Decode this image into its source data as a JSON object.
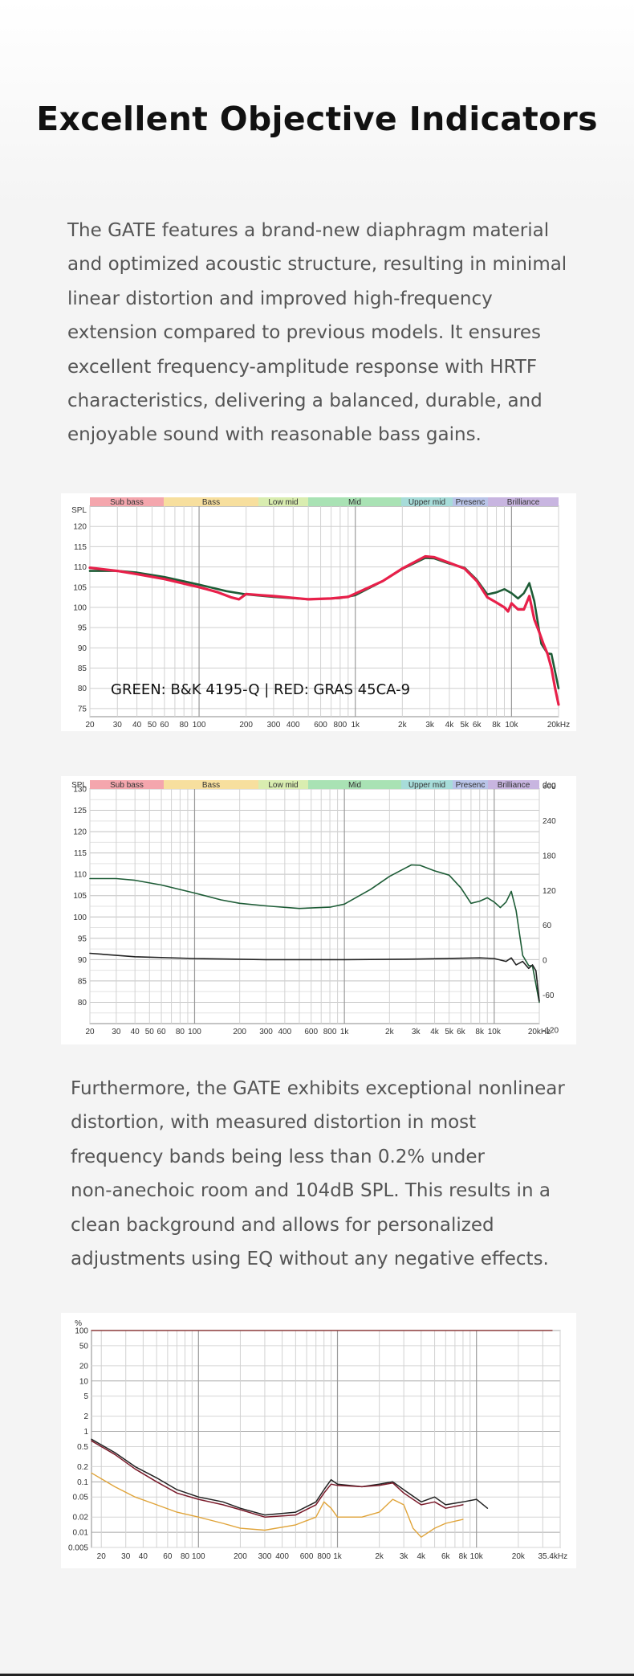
{
  "title": "Excellent Objective Indicators",
  "intro_lines": [
    "The GATE features a brand-new diaphragm material",
    "and optimized acoustic structure, resulting in minimal",
    "linear distortion and improved high-frequency",
    "extension compared to previous models. It ensures",
    "excellent frequency-amplitude response with HRTF",
    "characteristics, delivering a balanced, durable, and",
    "enjoyable sound with reasonable bass gains."
  ],
  "distortion_lines": [
    "Furthermore, the GATE exhibits exceptional nonlinear",
    "distortion, with measured distortion in most",
    "frequency bands being less than 0.2% under",
    "non-anechoic room and 104dB SPL. This results in a",
    "clean background and allows for personalized",
    "adjustments using EQ without any negative effects."
  ],
  "colors": {
    "green": "#1d5c36",
    "red": "#e8204a",
    "dark_red": "#7a1a2a",
    "orange": "#e0a43a",
    "black": "#222222",
    "limit": "#8b3a3a"
  },
  "bands": [
    {
      "label": "Sub bass",
      "color": "#f4a6ad"
    },
    {
      "label": "Bass",
      "color": "#f7df9e"
    },
    {
      "label": "Low mid",
      "color": "#d9edb0"
    },
    {
      "label": "Mid",
      "color": "#a9e2b4"
    },
    {
      "label": "Upper mid",
      "color": "#a7dcd9"
    },
    {
      "label": "Presenc",
      "color": "#b9c4e8"
    },
    {
      "label": "Brilliance",
      "color": "#c8b5e0"
    }
  ],
  "chart_data": [
    {
      "type": "line",
      "title": "",
      "ylabel": "SPL",
      "xlabel": "",
      "x_scale": "log",
      "xlim": [
        20,
        20000
      ],
      "ylim": [
        73,
        125
      ],
      "x_tick_labels": [
        "20",
        "30",
        "40",
        "50",
        "60",
        "80",
        "100",
        "200",
        "300",
        "400",
        "600",
        "800",
        "1k",
        "2k",
        "3k",
        "4k",
        "5k",
        "6k",
        "8k",
        "10k",
        "20kHz"
      ],
      "y_tick_labels": [
        "120",
        "115",
        "110",
        "105",
        "100",
        "95",
        "90",
        "85",
        "80",
        "75"
      ],
      "annotation": "GREEN: B&K 4195-Q | RED: GRAS 45CA-9",
      "series": [
        {
          "name": "GREEN: B&K 4195-Q",
          "color": "#1d5c36",
          "points": [
            [
              20,
              109
            ],
            [
              30,
              109
            ],
            [
              40,
              108.6
            ],
            [
              60,
              107.5
            ],
            [
              100,
              105.6
            ],
            [
              150,
              104
            ],
            [
              200,
              103.2
            ],
            [
              300,
              102.6
            ],
            [
              500,
              102
            ],
            [
              800,
              102.3
            ],
            [
              1000,
              103
            ],
            [
              1500,
              106.5
            ],
            [
              2000,
              109.5
            ],
            [
              2800,
              112.2
            ],
            [
              3200,
              112.1
            ],
            [
              4000,
              110.8
            ],
            [
              5000,
              109.8
            ],
            [
              6000,
              106.8
            ],
            [
              7000,
              103.2
            ],
            [
              8000,
              103.7
            ],
            [
              9000,
              104.5
            ],
            [
              10000,
              103.5
            ],
            [
              11000,
              102.2
            ],
            [
              12000,
              103.5
            ],
            [
              13000,
              106
            ],
            [
              14000,
              101.5
            ],
            [
              15500,
              91
            ],
            [
              17000,
              88.6
            ],
            [
              18000,
              88.5
            ],
            [
              20000,
              80
            ]
          ]
        },
        {
          "name": "RED: GRAS 45CA-9",
          "color": "#e8204a",
          "points": [
            [
              20,
              109.8
            ],
            [
              30,
              109
            ],
            [
              40,
              108.2
            ],
            [
              60,
              107
            ],
            [
              100,
              105
            ],
            [
              130,
              103.8
            ],
            [
              160,
              102.5
            ],
            [
              180,
              102
            ],
            [
              200,
              103.3
            ],
            [
              250,
              103
            ],
            [
              300,
              102.8
            ],
            [
              500,
              102
            ],
            [
              700,
              102.2
            ],
            [
              900,
              102.6
            ],
            [
              1000,
              103.4
            ],
            [
              1500,
              106.5
            ],
            [
              2000,
              109.6
            ],
            [
              2800,
              112.6
            ],
            [
              3200,
              112.4
            ],
            [
              4000,
              111
            ],
            [
              5000,
              109.6
            ],
            [
              6000,
              106.5
            ],
            [
              7000,
              102.5
            ],
            [
              8000,
              101.2
            ],
            [
              9000,
              100
            ],
            [
              9500,
              99
            ],
            [
              10000,
              101
            ],
            [
              11000,
              99.5
            ],
            [
              12000,
              99.5
            ],
            [
              13000,
              102.8
            ],
            [
              14000,
              97
            ],
            [
              15000,
              94
            ],
            [
              16000,
              91
            ],
            [
              17000,
              88.5
            ],
            [
              18000,
              85
            ],
            [
              19000,
              80
            ],
            [
              20000,
              76
            ]
          ]
        }
      ]
    },
    {
      "type": "line",
      "title": "",
      "ylabel": "SPL",
      "y2label": "deg",
      "xlabel": "",
      "x_scale": "log",
      "xlim": [
        20,
        20000
      ],
      "ylim": [
        75,
        130
      ],
      "y2lim": [
        -120,
        300
      ],
      "x_tick_labels": [
        "20",
        "30",
        "40",
        "50",
        "60",
        "80",
        "100",
        "200",
        "300",
        "400",
        "600",
        "800",
        "1k",
        "2k",
        "3k",
        "4k",
        "5k",
        "6k",
        "8k",
        "10k",
        "20kHz"
      ],
      "y_tick_labels": [
        "130",
        "125",
        "120",
        "115",
        "110",
        "105",
        "100",
        "95",
        "90",
        "85",
        "80"
      ],
      "y2_tick_labels": [
        "300",
        "240",
        "180",
        "120",
        "60",
        "0",
        "-60",
        "-120"
      ],
      "series": [
        {
          "name": "",
          "axis": "left",
          "color": "#1d5c36",
          "points": [
            [
              20,
              109
            ],
            [
              30,
              109
            ],
            [
              40,
              108.6
            ],
            [
              60,
              107.5
            ],
            [
              100,
              105.6
            ],
            [
              150,
              104
            ],
            [
              200,
              103.2
            ],
            [
              300,
              102.6
            ],
            [
              500,
              102
            ],
            [
              800,
              102.3
            ],
            [
              1000,
              103
            ],
            [
              1500,
              106.5
            ],
            [
              2000,
              109.5
            ],
            [
              2800,
              112.2
            ],
            [
              3200,
              112.1
            ],
            [
              4000,
              110.8
            ],
            [
              5000,
              109.8
            ],
            [
              6000,
              106.8
            ],
            [
              7000,
              103.2
            ],
            [
              8000,
              103.7
            ],
            [
              9000,
              104.5
            ],
            [
              10000,
              103.5
            ],
            [
              11000,
              102.2
            ],
            [
              12000,
              103.5
            ],
            [
              13000,
              106
            ],
            [
              14000,
              101.5
            ],
            [
              15500,
              91
            ],
            [
              17000,
              88.6
            ],
            [
              18000,
              88.5
            ],
            [
              20000,
              80
            ]
          ]
        },
        {
          "name": "",
          "axis": "right",
          "color": "#222222",
          "points": [
            [
              20,
              12
            ],
            [
              40,
              6
            ],
            [
              100,
              3
            ],
            [
              300,
              1
            ],
            [
              1000,
              1
            ],
            [
              3000,
              2
            ],
            [
              8000,
              4
            ],
            [
              10000,
              3
            ],
            [
              12000,
              -2
            ],
            [
              13000,
              4
            ],
            [
              14000,
              -8
            ],
            [
              15500,
              -2
            ],
            [
              17000,
              -14
            ],
            [
              18000,
              -8
            ],
            [
              19000,
              -18
            ],
            [
              20000,
              -70
            ]
          ]
        }
      ]
    },
    {
      "type": "line",
      "title": "",
      "ylabel": "%",
      "xlabel": "",
      "x_scale": "log",
      "y_scale": "log",
      "xlim": [
        20,
        40000
      ],
      "ylim": [
        0.005,
        100
      ],
      "x_tick_labels": [
        "20",
        "30",
        "40",
        "60",
        "80",
        "100",
        "200",
        "300",
        "400",
        "600",
        "800",
        "1k",
        "2k",
        "3k",
        "4k",
        "6k",
        "8k",
        "10k",
        "20k",
        "35.4kHz"
      ],
      "y_tick_labels": [
        "100",
        "50",
        "20",
        "10",
        "5",
        "2",
        "1",
        "0.5",
        "0.2",
        "0.1",
        "0.05",
        "0.02",
        "0.01",
        "0.005"
      ],
      "series": [
        {
          "name": "",
          "color": "#8b3a3a",
          "points": [
            [
              17,
              100
            ],
            [
              35000,
              100
            ]
          ]
        },
        {
          "name": "",
          "color": "#222222",
          "points": [
            [
              17,
              0.7
            ],
            [
              25,
              0.38
            ],
            [
              35,
              0.2
            ],
            [
              50,
              0.12
            ],
            [
              70,
              0.07
            ],
            [
              100,
              0.05
            ],
            [
              150,
              0.04
            ],
            [
              200,
              0.03
            ],
            [
              300,
              0.022
            ],
            [
              500,
              0.025
            ],
            [
              700,
              0.04
            ],
            [
              800,
              0.07
            ],
            [
              900,
              0.11
            ],
            [
              1000,
              0.09
            ],
            [
              1500,
              0.08
            ],
            [
              2000,
              0.09
            ],
            [
              2500,
              0.1
            ],
            [
              3000,
              0.07
            ],
            [
              4000,
              0.04
            ],
            [
              5000,
              0.05
            ],
            [
              6000,
              0.035
            ],
            [
              8000,
              0.04
            ],
            [
              10000,
              0.045
            ],
            [
              12000,
              0.03
            ]
          ]
        },
        {
          "name": "",
          "color": "#7a1a2a",
          "points": [
            [
              17,
              0.65
            ],
            [
              25,
              0.35
            ],
            [
              35,
              0.18
            ],
            [
              50,
              0.1
            ],
            [
              70,
              0.06
            ],
            [
              100,
              0.045
            ],
            [
              150,
              0.035
            ],
            [
              200,
              0.028
            ],
            [
              300,
              0.02
            ],
            [
              500,
              0.022
            ],
            [
              700,
              0.035
            ],
            [
              800,
              0.06
            ],
            [
              900,
              0.09
            ],
            [
              1000,
              0.085
            ],
            [
              1500,
              0.08
            ],
            [
              2000,
              0.085
            ],
            [
              2500,
              0.095
            ],
            [
              3000,
              0.06
            ],
            [
              4000,
              0.035
            ],
            [
              5000,
              0.04
            ],
            [
              6000,
              0.03
            ],
            [
              8000,
              0.035
            ]
          ]
        },
        {
          "name": "",
          "color": "#e0a43a",
          "points": [
            [
              17,
              0.15
            ],
            [
              25,
              0.08
            ],
            [
              35,
              0.05
            ],
            [
              50,
              0.035
            ],
            [
              70,
              0.025
            ],
            [
              100,
              0.02
            ],
            [
              150,
              0.015
            ],
            [
              200,
              0.012
            ],
            [
              300,
              0.011
            ],
            [
              500,
              0.014
            ],
            [
              700,
              0.02
            ],
            [
              800,
              0.04
            ],
            [
              900,
              0.03
            ],
            [
              1000,
              0.02
            ],
            [
              1500,
              0.02
            ],
            [
              2000,
              0.025
            ],
            [
              2500,
              0.045
            ],
            [
              3000,
              0.035
            ],
            [
              3500,
              0.012
            ],
            [
              4000,
              0.008
            ],
            [
              5000,
              0.012
            ],
            [
              6000,
              0.015
            ],
            [
              8000,
              0.018
            ]
          ]
        }
      ]
    }
  ]
}
